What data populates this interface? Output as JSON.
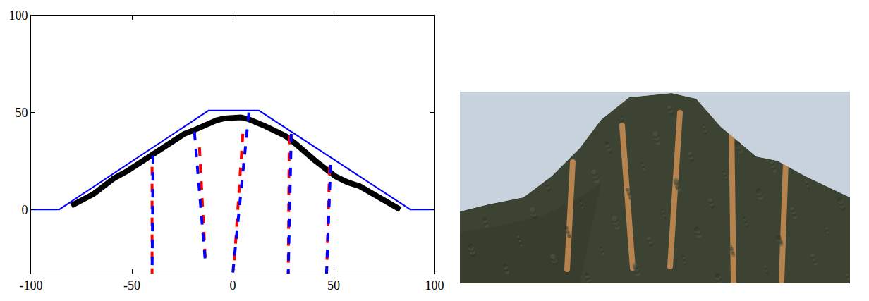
{
  "chart_data": {
    "type": "line",
    "xlim": [
      -100,
      100
    ],
    "xticks": [
      -100,
      -50,
      0,
      50,
      100
    ],
    "ylim": [
      -33,
      100
    ],
    "yticks": [
      0,
      50,
      100
    ],
    "grid": false,
    "series": [
      {
        "color": "#000000",
        "line_style": "solid",
        "marker": "circle",
        "x": [
          -80,
          -75,
          -69,
          -64,
          -59,
          -52,
          -46,
          -40,
          -34,
          -29,
          -24,
          -19,
          -15,
          -11,
          -8,
          -4,
          0,
          4,
          8,
          12,
          16,
          20,
          26,
          31,
          36,
          41,
          46,
          51,
          57,
          63,
          68,
          73,
          78,
          83
        ],
        "values": [
          2,
          5,
          8,
          12,
          16,
          20,
          24,
          28,
          32,
          36,
          39,
          41,
          43,
          45,
          46,
          47,
          47.5,
          47.5,
          46.5,
          45,
          43,
          41,
          38,
          34,
          29,
          25,
          21,
          17,
          14,
          12,
          9,
          6,
          3,
          0
        ]
      },
      {
        "color": "#0000ff",
        "line_style": "solid",
        "x": [
          -100,
          -86,
          -12,
          13,
          88,
          100
        ],
        "values": [
          0,
          0,
          51,
          51,
          0,
          0
        ]
      },
      {
        "color": "#ff0000",
        "line_style": "dash",
        "x": [
          -40,
          -40,
          null,
          -16.5,
          -13.5,
          null,
          5,
          0.5,
          null,
          28,
          27.5,
          null,
          48,
          46.5
        ],
        "values": [
          22,
          -33,
          null,
          32,
          -28,
          null,
          39,
          -31,
          null,
          38,
          -33,
          null,
          22,
          -33
        ]
      },
      {
        "color": "#0000ff",
        "line_style": "dash",
        "x": [
          -39.5,
          -40,
          null,
          -19,
          -13.5,
          null,
          8,
          0,
          null,
          29,
          27.5,
          null,
          48.5,
          46.5
        ],
        "values": [
          28,
          -33,
          null,
          40,
          -28,
          null,
          50,
          -33,
          null,
          39,
          -33,
          null,
          23,
          -33
        ]
      }
    ]
  }
}
